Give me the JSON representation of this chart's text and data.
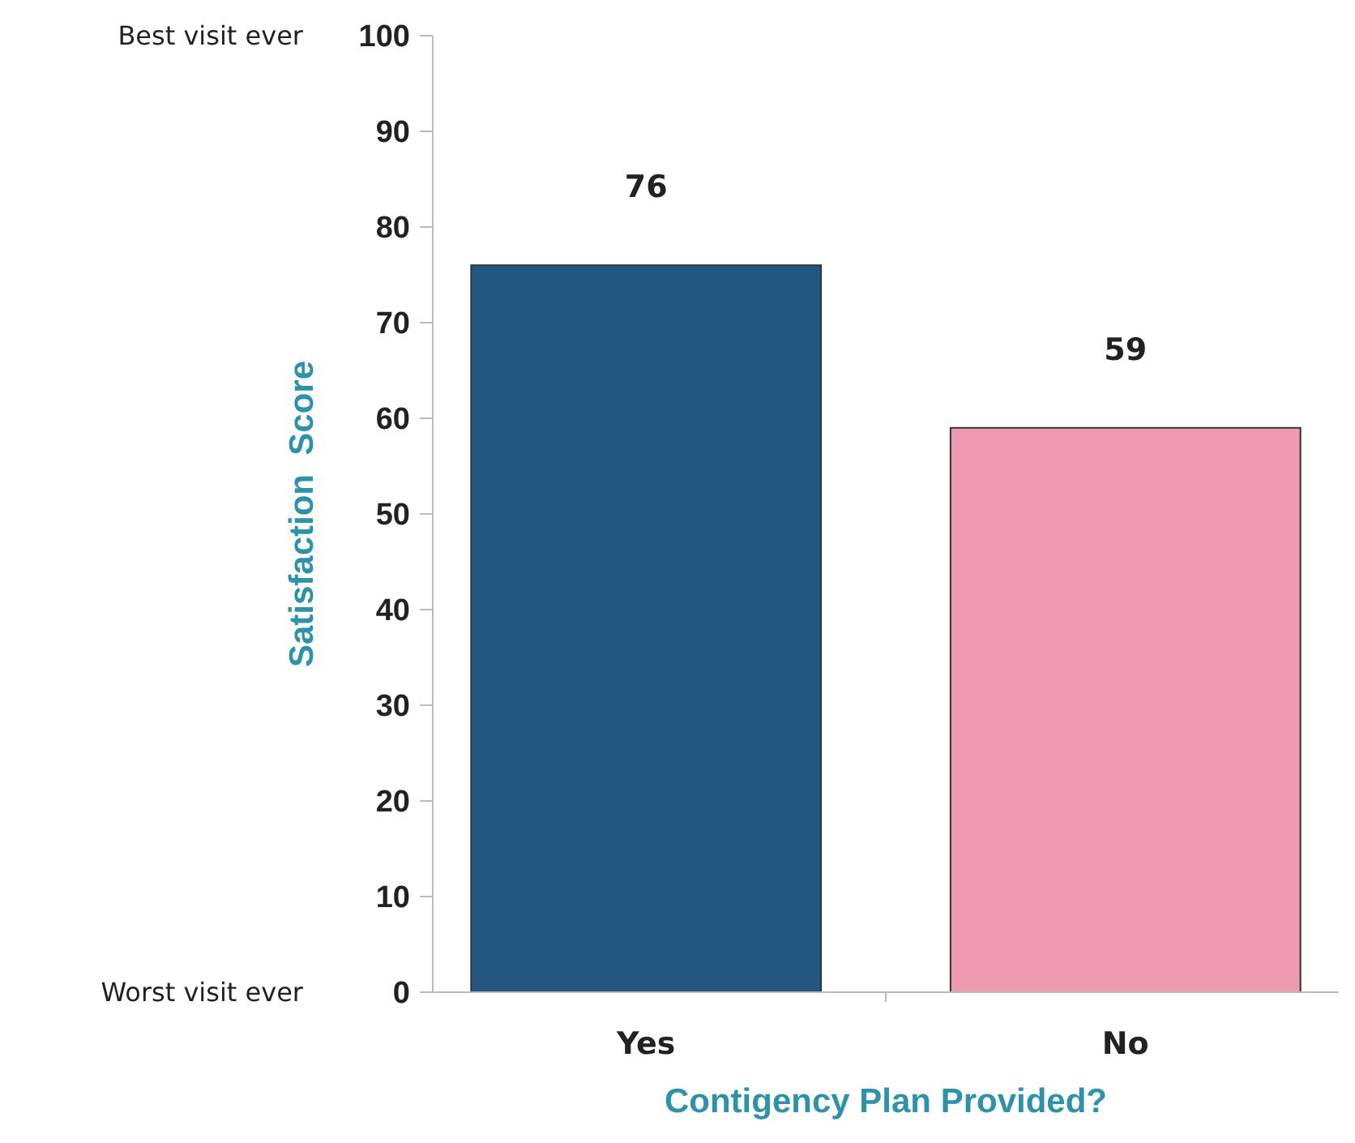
{
  "chart_data": {
    "type": "bar",
    "xlabel": "Contigency Plan Provided?",
    "ylabel": "Satisfaction  Score",
    "categories": [
      "Yes",
      "No"
    ],
    "values": [
      76,
      59
    ],
    "colors": [
      "#245780",
      "#ee9ab2"
    ],
    "ylim": [
      0,
      100
    ],
    "yticks": [
      0,
      10,
      20,
      30,
      40,
      50,
      60,
      70,
      80,
      90,
      100
    ],
    "data_labels": true,
    "grid": false,
    "annotations": [
      "Best visit ever",
      "Worst visit ever"
    ]
  }
}
